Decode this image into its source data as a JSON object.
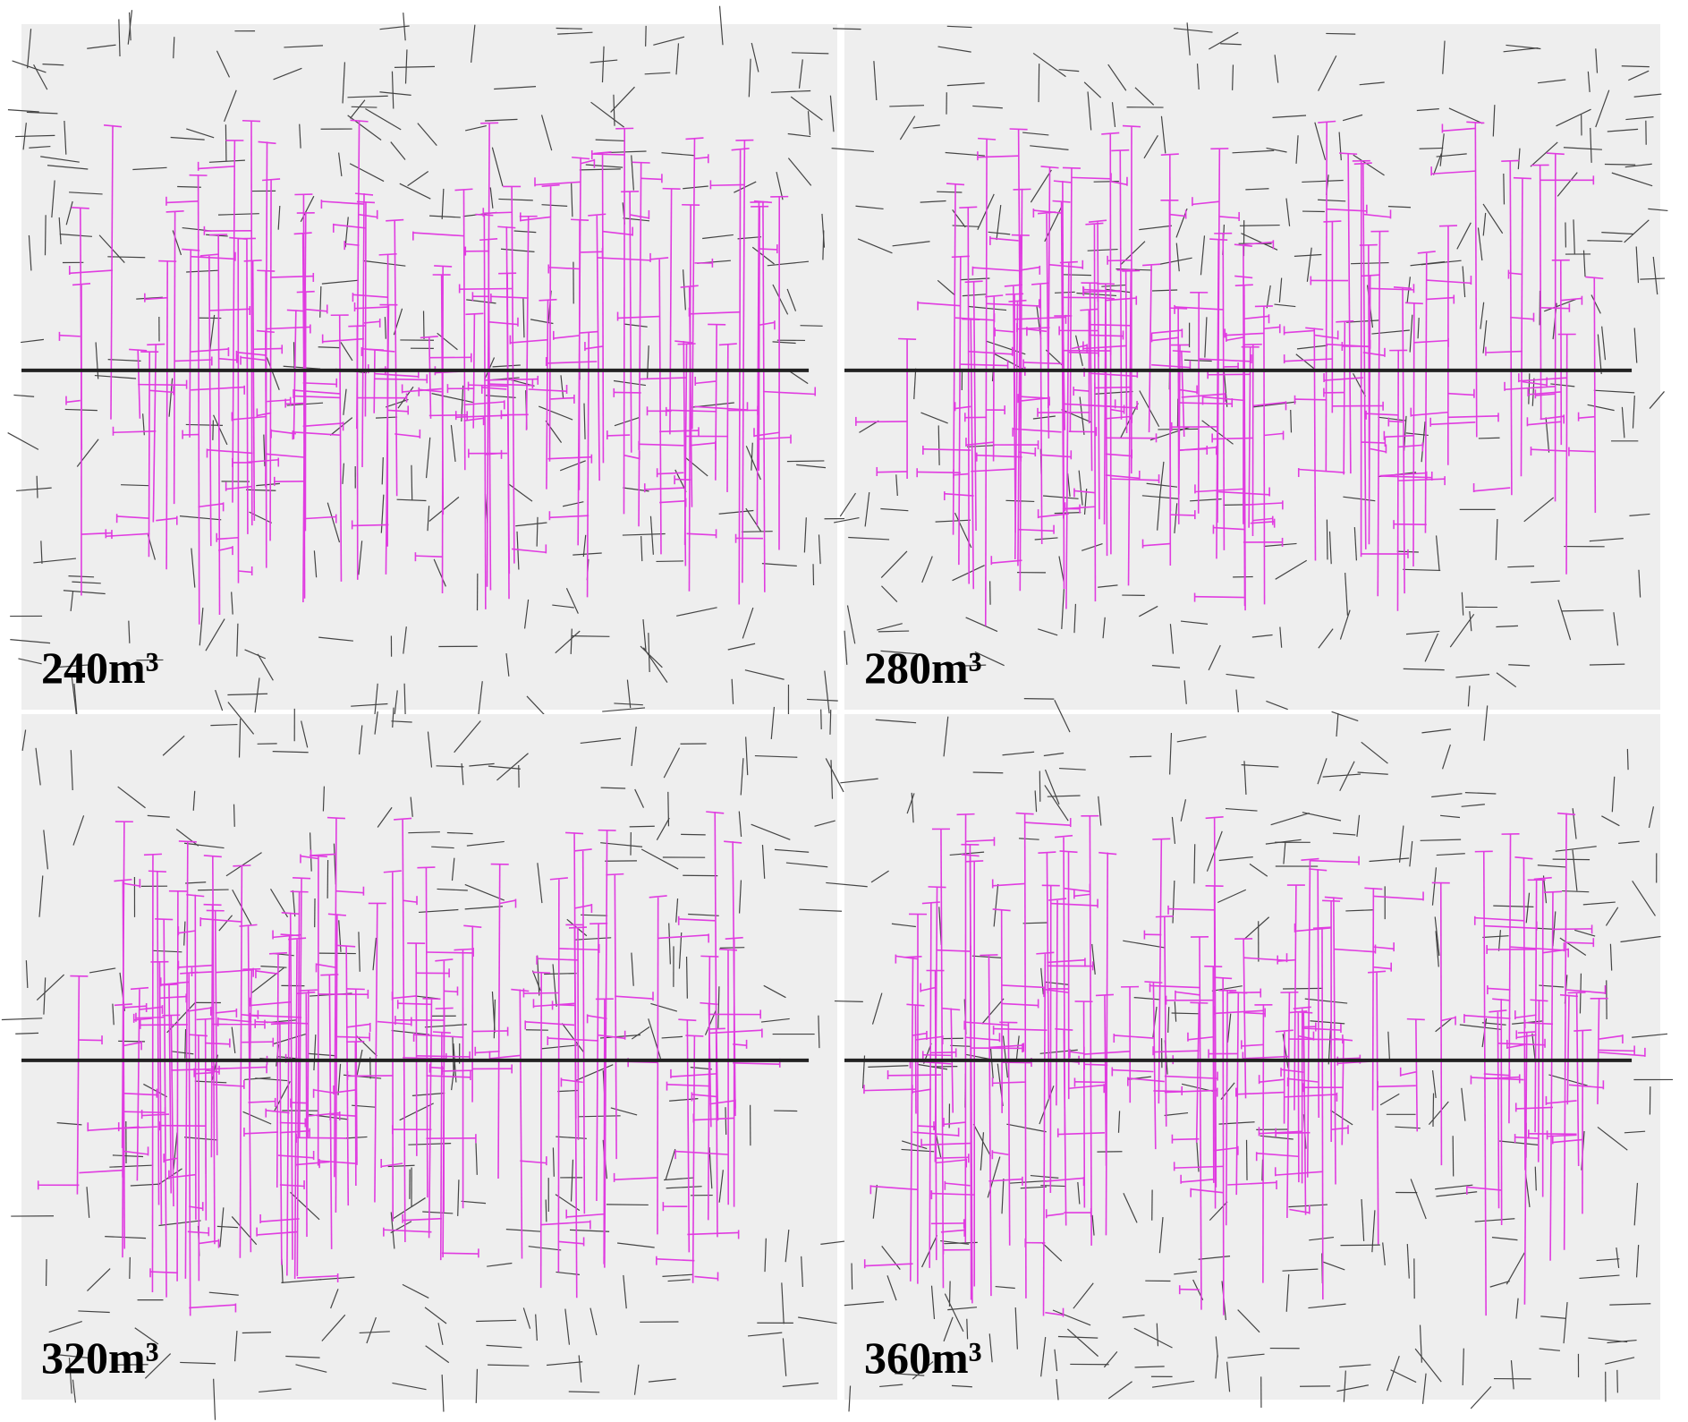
{
  "panels": [
    {
      "label": "240m³"
    },
    {
      "label": "280m³"
    },
    {
      "label": "320m³"
    },
    {
      "label": "360m³"
    }
  ]
}
